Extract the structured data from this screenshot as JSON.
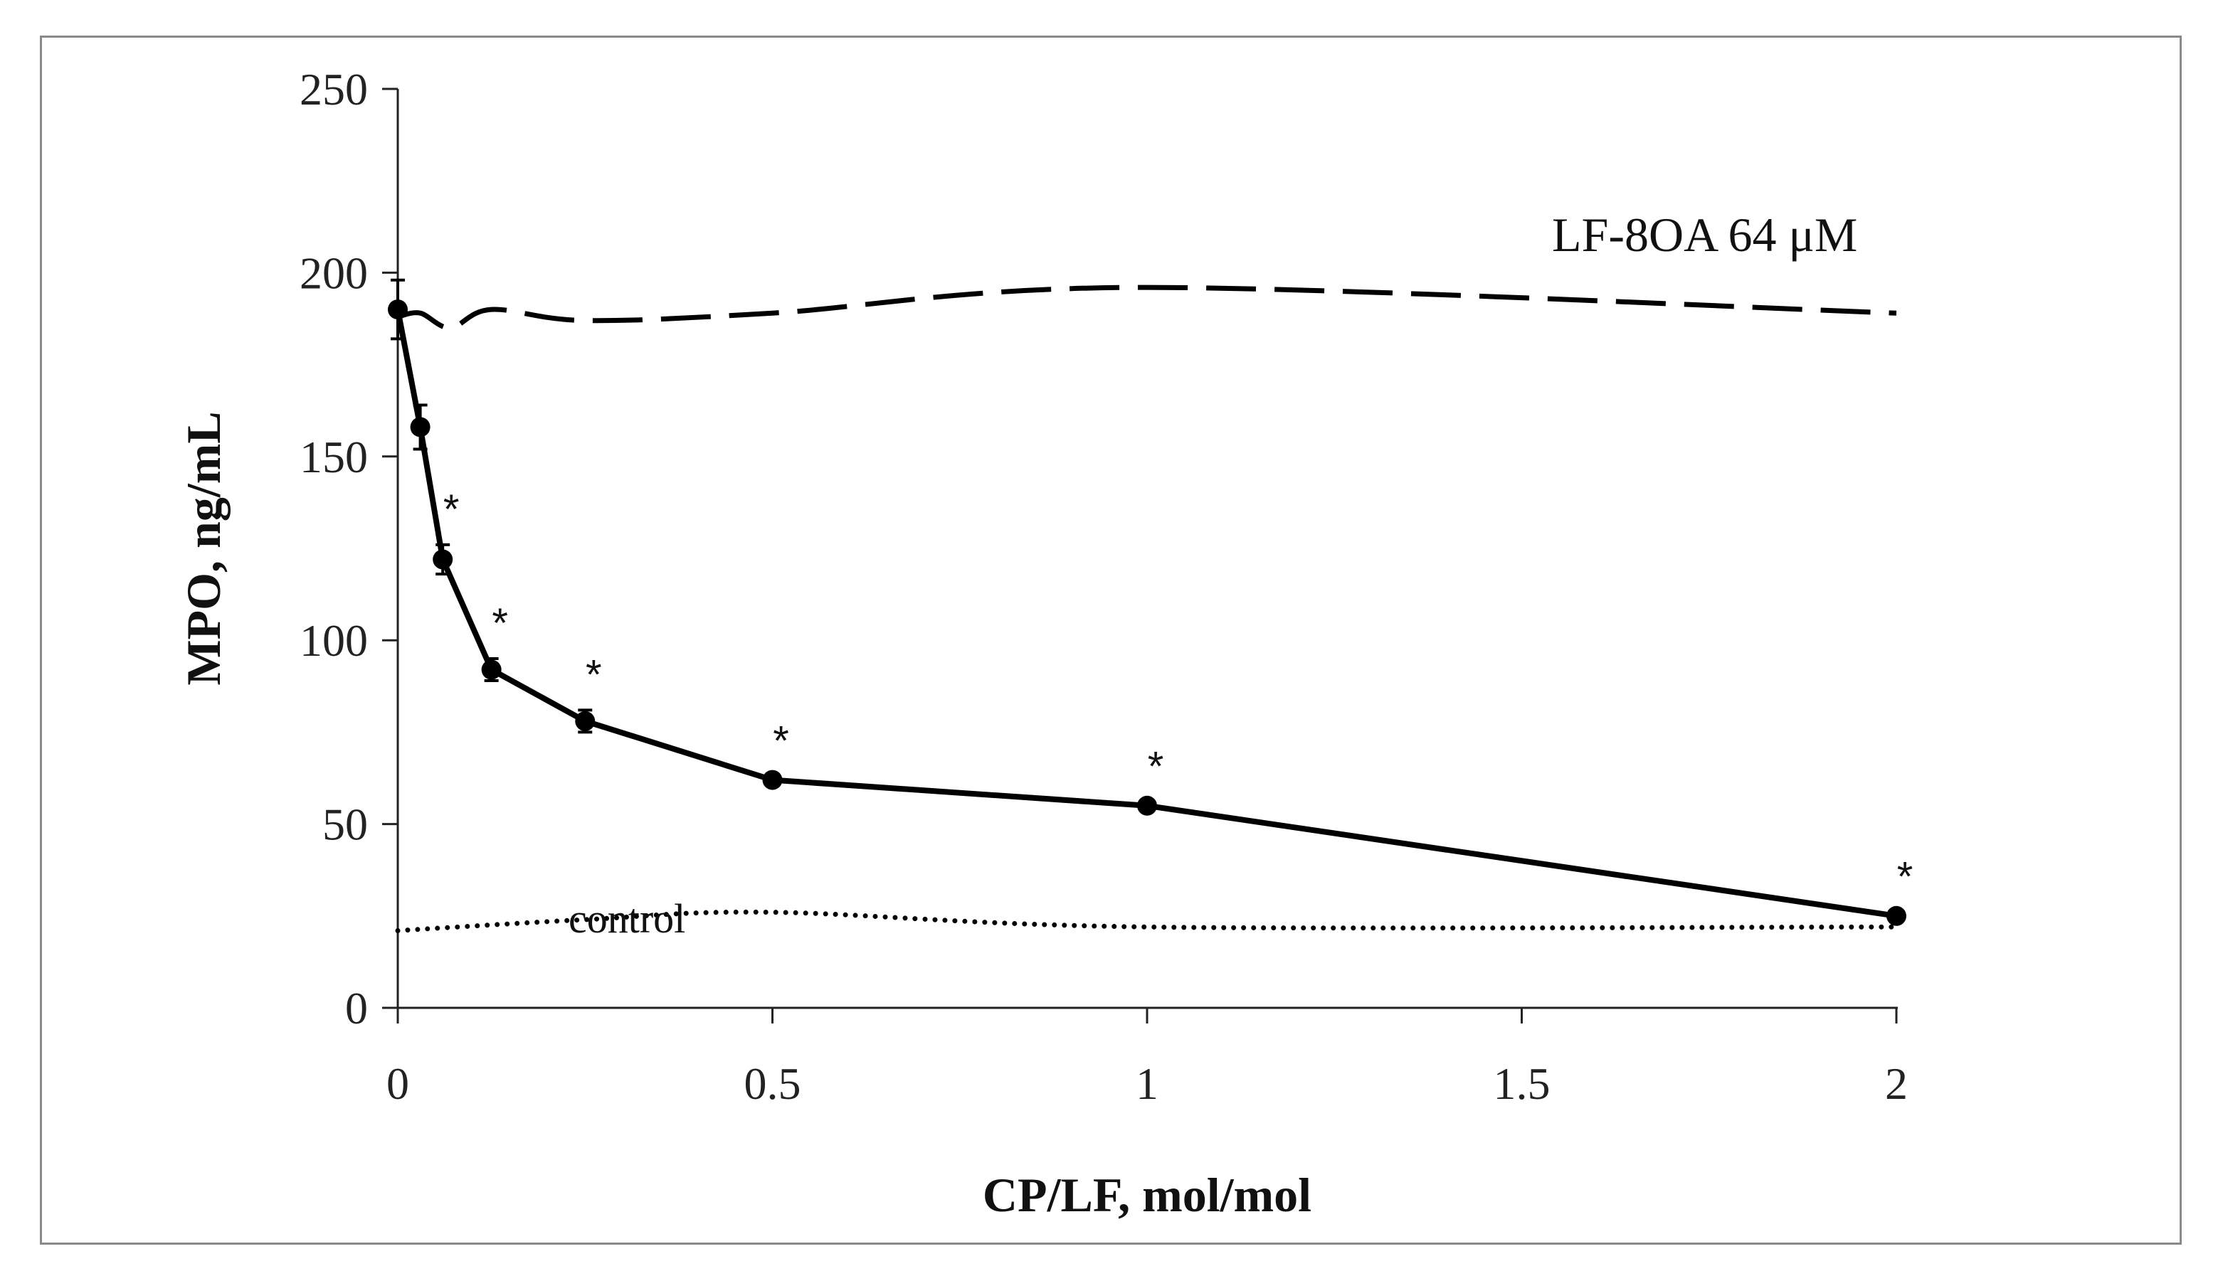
{
  "chart_data": {
    "type": "line",
    "title": "",
    "xlabel": "CP/LF, mol/mol",
    "ylabel": "MPO, ng/mL",
    "xlim": [
      0,
      2
    ],
    "ylim": [
      0,
      250
    ],
    "xticks": [
      0,
      0.5,
      1,
      1.5,
      2
    ],
    "xtick_labels": [
      "0",
      "0.5",
      "1",
      "1.5",
      "2"
    ],
    "yticks": [
      0,
      50,
      100,
      150,
      200,
      250
    ],
    "ytick_labels": [
      "0",
      "50",
      "100",
      "150",
      "200",
      "250"
    ],
    "grid": false,
    "series": [
      {
        "name": "CP/LF",
        "style": "solid-markers",
        "x": [
          0,
          0.03,
          0.06,
          0.125,
          0.25,
          0.5,
          1,
          2
        ],
        "y": [
          190,
          158,
          122,
          92,
          78,
          62,
          55,
          25
        ],
        "error": [
          8,
          6,
          4,
          3,
          3,
          1,
          1,
          1
        ],
        "significance": [
          "",
          "",
          "*",
          "*",
          "*",
          "*",
          "*",
          "*"
        ]
      },
      {
        "name": "LF-8OA 64 μM",
        "style": "dashed",
        "x": [
          0,
          0.03,
          0.07,
          0.125,
          0.25,
          0.5,
          1,
          2
        ],
        "y": [
          188,
          189,
          185,
          190,
          187,
          189,
          196,
          189
        ]
      },
      {
        "name": "control",
        "style": "dotted",
        "x": [
          0,
          0.25,
          0.5,
          1,
          2
        ],
        "y": [
          21,
          24,
          26,
          22,
          22
        ]
      }
    ],
    "annotations": [
      {
        "text": "LF-8OA 64 μM",
        "series": "LF-8OA 64 μM"
      },
      {
        "text": "control",
        "series": "control"
      }
    ]
  },
  "colors": {
    "line": "#000000",
    "axis": "#222222",
    "frame": "#8a8a8a"
  }
}
